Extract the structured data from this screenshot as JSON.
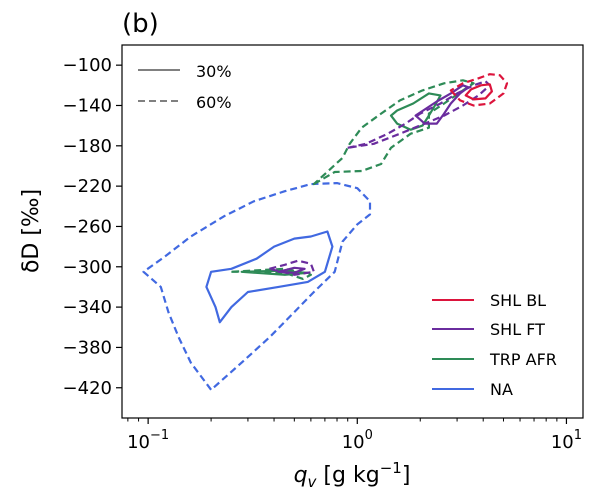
{
  "chart_data": {
    "type": "line",
    "panel_label": "(b)",
    "xlabel": "q",
    "xlabel_sub": "v",
    "xlabel_unit": " [g kg",
    "xlabel_exp": "−1",
    "xlabel_end": "]",
    "ylabel": "δD [‰]",
    "xscale": "log",
    "xlim": [
      0.075,
      12
    ],
    "ylim": [
      -450,
      -80
    ],
    "xticks": [
      {
        "value": 0.1,
        "base": "10",
        "exp": "−1"
      },
      {
        "value": 1,
        "base": "10",
        "exp": "0"
      },
      {
        "value": 10,
        "base": "10",
        "exp": "1"
      }
    ],
    "yticks": [
      -100,
      -140,
      -180,
      -220,
      -260,
      -300,
      -340,
      -380,
      -420
    ],
    "style_legend": [
      {
        "label": "30%",
        "dash": "solid"
      },
      {
        "label": "60%",
        "dash": "dashed"
      }
    ],
    "series_legend": [
      {
        "label": "SHL BL",
        "color": "#dc143c"
      },
      {
        "label": "SHL FT",
        "color": "#6a2c9e"
      },
      {
        "label": "TRP AFR",
        "color": "#2e8b57"
      },
      {
        "label": "NA",
        "color": "#4169e1"
      }
    ],
    "series": [
      {
        "name": "NA",
        "color": "#4169e1",
        "contours": [
          {
            "level": "60%",
            "dashed": true,
            "points": [
              [
                0.2,
                -422
              ],
              [
                0.16,
                -395
              ],
              [
                0.14,
                -370
              ],
              [
                0.125,
                -345
              ],
              [
                0.115,
                -320
              ],
              [
                0.095,
                -305
              ],
              [
                0.12,
                -290
              ],
              [
                0.16,
                -270
              ],
              [
                0.23,
                -250
              ],
              [
                0.32,
                -235
              ],
              [
                0.45,
                -225
              ],
              [
                0.6,
                -218
              ],
              [
                0.8,
                -217
              ],
              [
                1.0,
                -222
              ],
              [
                1.15,
                -235
              ],
              [
                1.15,
                -248
              ],
              [
                1.0,
                -258
              ],
              [
                0.85,
                -275
              ],
              [
                0.78,
                -305
              ],
              [
                0.62,
                -325
              ],
              [
                0.5,
                -345
              ],
              [
                0.38,
                -370
              ],
              [
                0.28,
                -395
              ],
              [
                0.2,
                -422
              ]
            ]
          },
          {
            "level": "30%",
            "dashed": false,
            "points": [
              [
                0.2,
                -305
              ],
              [
                0.25,
                -302
              ],
              [
                0.33,
                -292
              ],
              [
                0.4,
                -280
              ],
              [
                0.5,
                -272
              ],
              [
                0.6,
                -270
              ],
              [
                0.72,
                -265
              ],
              [
                0.76,
                -280
              ],
              [
                0.7,
                -305
              ],
              [
                0.58,
                -315
              ],
              [
                0.42,
                -320
              ],
              [
                0.3,
                -325
              ],
              [
                0.25,
                -340
              ],
              [
                0.22,
                -355
              ],
              [
                0.21,
                -340
              ],
              [
                0.19,
                -320
              ],
              [
                0.2,
                -305
              ]
            ]
          }
        ]
      },
      {
        "name": "TRP AFR",
        "color": "#2e8b57",
        "contours": [
          {
            "level": "60%",
            "dashed": true,
            "points": [
              [
                0.62,
                -218
              ],
              [
                0.78,
                -206
              ],
              [
                1.05,
                -205
              ],
              [
                1.3,
                -198
              ],
              [
                1.45,
                -182
              ],
              [
                1.8,
                -168
              ],
              [
                2.2,
                -162
              ],
              [
                2.2,
                -148
              ],
              [
                2.6,
                -138
              ],
              [
                3.2,
                -125
              ],
              [
                3.6,
                -118
              ],
              [
                3.2,
                -115
              ],
              [
                2.6,
                -118
              ],
              [
                2.05,
                -125
              ],
              [
                1.6,
                -135
              ],
              [
                1.3,
                -148
              ],
              [
                1.05,
                -162
              ],
              [
                0.92,
                -178
              ],
              [
                0.85,
                -192
              ],
              [
                0.62,
                -218
              ]
            ]
          },
          {
            "level": "60%",
            "dashed": true,
            "points": [
              [
                0.25,
                -305
              ],
              [
                0.35,
                -305
              ],
              [
                0.45,
                -306
              ],
              [
                0.55,
                -312
              ],
              [
                0.6,
                -308
              ],
              [
                0.45,
                -302
              ],
              [
                0.25,
                -305
              ]
            ]
          },
          {
            "level": "30%",
            "dashed": false,
            "points": [
              [
                1.45,
                -150
              ],
              [
                1.55,
                -158
              ],
              [
                1.8,
                -164
              ],
              [
                2.05,
                -160
              ],
              [
                2.2,
                -150
              ],
              [
                2.35,
                -140
              ],
              [
                2.5,
                -130
              ],
              [
                2.2,
                -128
              ],
              [
                1.85,
                -138
              ],
              [
                1.55,
                -145
              ],
              [
                1.45,
                -150
              ]
            ]
          },
          {
            "level": "30%",
            "dashed": false,
            "points": [
              [
                0.28,
                -305
              ],
              [
                0.42,
                -304
              ],
              [
                0.58,
                -306
              ],
              [
                0.45,
                -308
              ],
              [
                0.28,
                -305
              ]
            ]
          }
        ]
      },
      {
        "name": "SHL FT",
        "color": "#6a2c9e",
        "contours": [
          {
            "level": "60%",
            "dashed": true,
            "points": [
              [
                0.9,
                -182
              ],
              [
                1.1,
                -178
              ],
              [
                1.4,
                -168
              ],
              [
                1.7,
                -158
              ],
              [
                2.0,
                -148
              ],
              [
                2.5,
                -138
              ],
              [
                3.0,
                -128
              ],
              [
                3.6,
                -120
              ],
              [
                4.1,
                -116
              ],
              [
                4.3,
                -120
              ],
              [
                3.8,
                -130
              ],
              [
                3.2,
                -140
              ],
              [
                2.6,
                -150
              ],
              [
                2.1,
                -158
              ],
              [
                1.6,
                -168
              ],
              [
                1.2,
                -178
              ],
              [
                0.9,
                -182
              ]
            ]
          },
          {
            "level": "60%",
            "dashed": true,
            "points": [
              [
                0.38,
                -302
              ],
              [
                0.45,
                -298
              ],
              [
                0.52,
                -294
              ],
              [
                0.6,
                -297
              ],
              [
                0.62,
                -305
              ],
              [
                0.5,
                -308
              ],
              [
                0.38,
                -302
              ]
            ]
          },
          {
            "level": "30%",
            "dashed": false,
            "points": [
              [
                1.9,
                -150
              ],
              [
                2.1,
                -158
              ],
              [
                2.4,
                -158
              ],
              [
                2.6,
                -148
              ],
              [
                2.8,
                -138
              ],
              [
                3.1,
                -128
              ],
              [
                3.4,
                -122
              ],
              [
                3.2,
                -120
              ],
              [
                2.8,
                -128
              ],
              [
                2.4,
                -136
              ],
              [
                2.1,
                -144
              ],
              [
                1.9,
                -150
              ]
            ]
          },
          {
            "level": "30%",
            "dashed": false,
            "points": [
              [
                0.42,
                -305
              ],
              [
                0.5,
                -301
              ],
              [
                0.56,
                -302
              ],
              [
                0.5,
                -306
              ],
              [
                0.42,
                -305
              ]
            ]
          }
        ]
      },
      {
        "name": "SHL BL",
        "color": "#dc143c",
        "contours": [
          {
            "level": "60%",
            "dashed": true,
            "points": [
              [
                2.8,
                -125
              ],
              [
                3.1,
                -135
              ],
              [
                3.6,
                -140
              ],
              [
                4.3,
                -138
              ],
              [
                5.0,
                -128
              ],
              [
                5.2,
                -118
              ],
              [
                4.8,
                -110
              ],
              [
                4.3,
                -109
              ],
              [
                3.8,
                -113
              ],
              [
                3.2,
                -118
              ],
              [
                2.8,
                -125
              ]
            ]
          },
          {
            "level": "30%",
            "dashed": false,
            "points": [
              [
                3.3,
                -130
              ],
              [
                3.6,
                -134
              ],
              [
                4.1,
                -133
              ],
              [
                4.4,
                -126
              ],
              [
                4.3,
                -119
              ],
              [
                3.9,
                -120
              ],
              [
                3.5,
                -124
              ],
              [
                3.3,
                -130
              ]
            ]
          }
        ]
      }
    ]
  }
}
